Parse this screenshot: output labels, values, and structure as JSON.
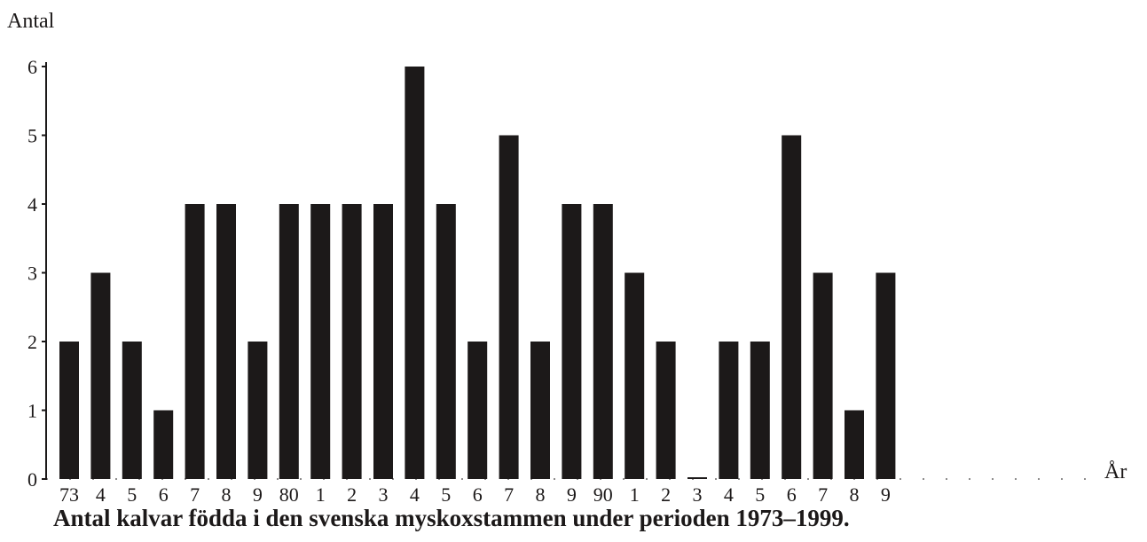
{
  "chart_data": {
    "type": "bar",
    "ylabel": "Antal",
    "xlabel": "År",
    "categories": [
      "73",
      "4",
      "5",
      "6",
      "7",
      "8",
      "9",
      "80",
      "1",
      "2",
      "3",
      "4",
      "5",
      "6",
      "7",
      "8",
      "9",
      "90",
      "1",
      "2",
      "3",
      "4",
      "5",
      "6",
      "7",
      "8",
      "9"
    ],
    "values": [
      2,
      3,
      2,
      1,
      4,
      4,
      2,
      4,
      4,
      4,
      4,
      6,
      4,
      2,
      5,
      2,
      4,
      4,
      3,
      2,
      0,
      2,
      2,
      5,
      3,
      1,
      3
    ],
    "ylim": [
      0,
      6
    ],
    "yticks": [
      "0",
      "1",
      "2",
      "3",
      "4",
      "5",
      "6"
    ],
    "grid": false,
    "bar_color": "#1c1919",
    "caption": "Antal kalvar födda i den svenska myskoxstammen under perioden 1973–1999."
  }
}
